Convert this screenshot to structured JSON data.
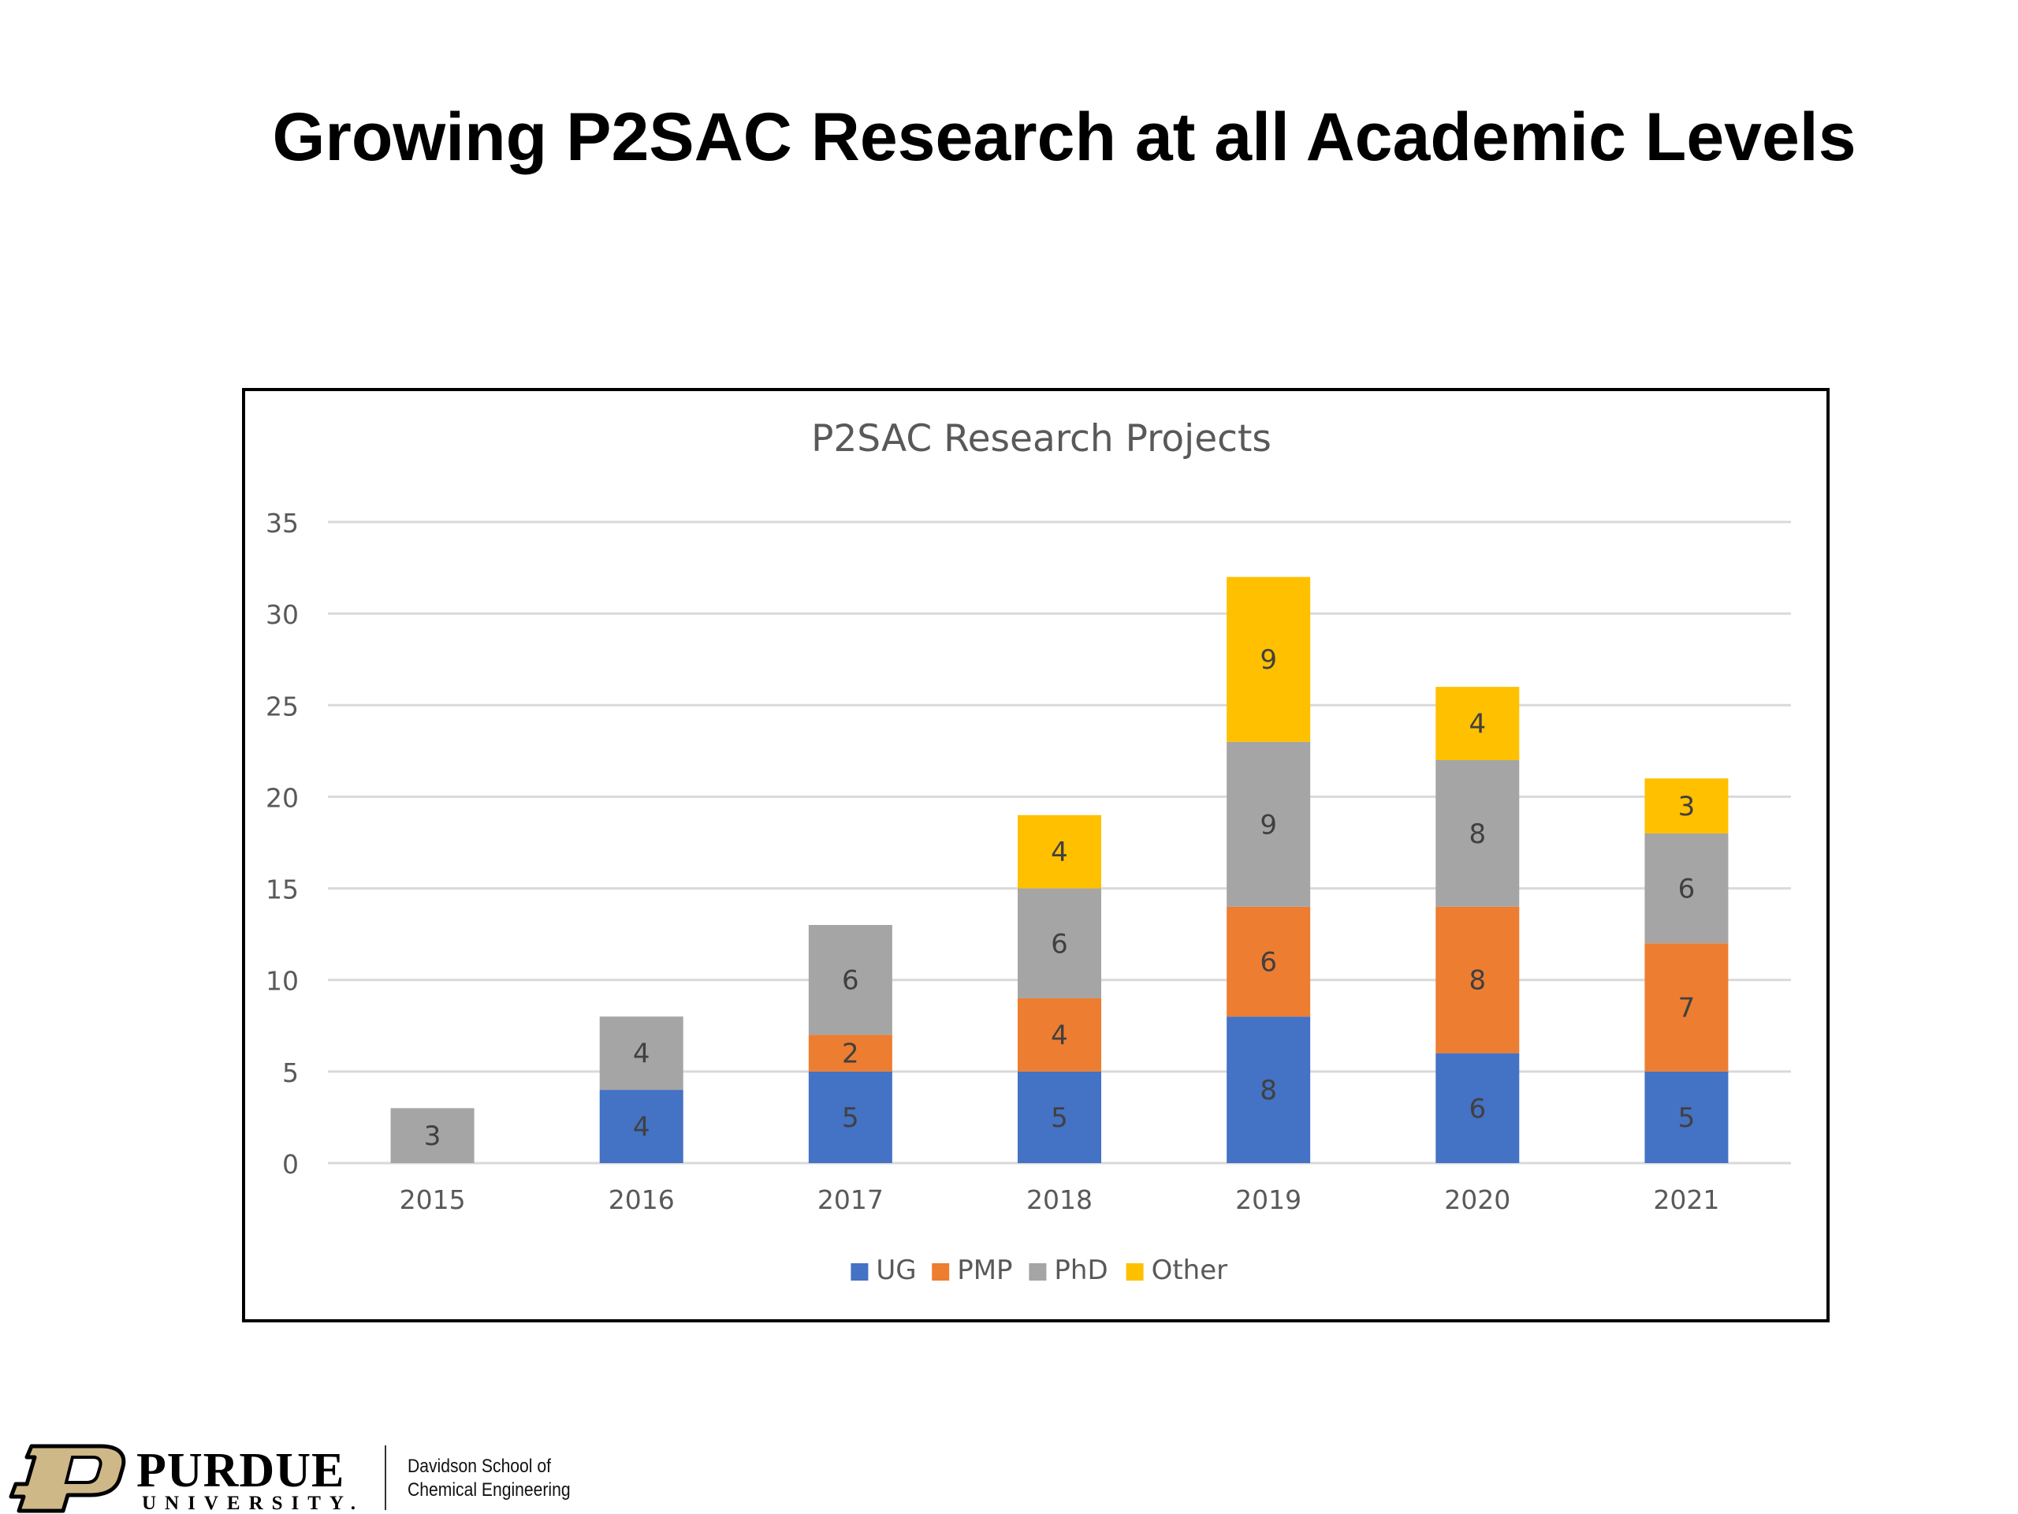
{
  "slide": {
    "title": "Growing P2SAC Research at all Academic Levels"
  },
  "chart_data": {
    "type": "bar",
    "stacked": true,
    "title": "P2SAC Research Projects",
    "xlabel": "",
    "ylabel": "",
    "categories": [
      "2015",
      "2016",
      "2017",
      "2018",
      "2019",
      "2020",
      "2021"
    ],
    "ylim": [
      0,
      35
    ],
    "yticks": [
      0,
      5,
      10,
      15,
      20,
      25,
      30,
      35
    ],
    "grid": true,
    "legend_position": "bottom",
    "series": [
      {
        "name": "UG",
        "color": "#4472C4",
        "values": [
          0,
          4,
          5,
          5,
          8,
          6,
          5
        ]
      },
      {
        "name": "PMP",
        "color": "#ED7D31",
        "values": [
          0,
          0,
          2,
          4,
          6,
          8,
          7
        ]
      },
      {
        "name": "PhD",
        "color": "#A5A5A5",
        "values": [
          3,
          4,
          6,
          6,
          9,
          8,
          6
        ]
      },
      {
        "name": "Other",
        "color": "#FFC000",
        "values": [
          0,
          0,
          0,
          4,
          9,
          4,
          3
        ]
      }
    ],
    "data_labels": true
  },
  "footer": {
    "logo_mark": "P",
    "brand": "PURDUE",
    "brand_sub": "UNIVERSITY.",
    "dept_line1": "Davidson School of",
    "dept_line2": "Chemical Engineering"
  }
}
